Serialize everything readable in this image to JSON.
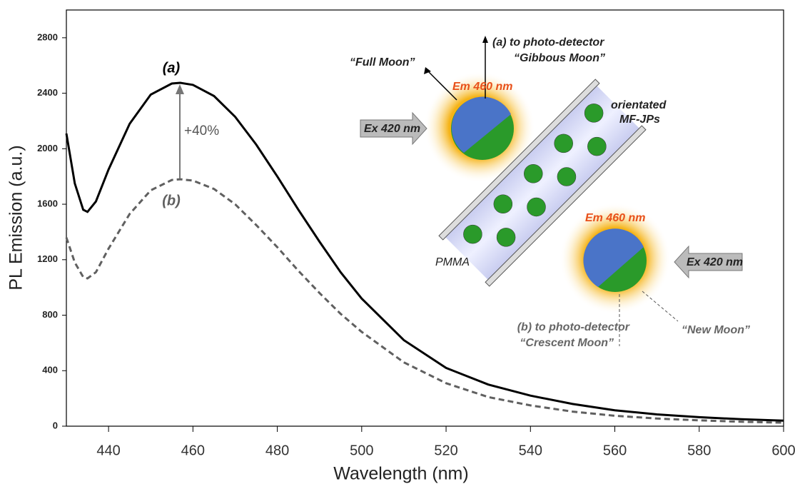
{
  "chart_data": {
    "type": "line",
    "x_label": "Wavelength (nm)",
    "y_label": "PL Emission (a.u.)",
    "x": [
      430,
      432,
      434,
      435,
      437,
      440,
      445,
      450,
      455,
      457,
      460,
      465,
      470,
      475,
      480,
      485,
      490,
      495,
      500,
      510,
      520,
      530,
      540,
      550,
      560,
      570,
      580,
      590,
      600
    ],
    "series": [
      {
        "name": "(a)",
        "color": "#000000",
        "line_style": "solid",
        "values": [
          2110,
          1750,
          1560,
          1545,
          1620,
          1850,
          2180,
          2390,
          2470,
          2475,
          2460,
          2380,
          2230,
          2030,
          1800,
          1560,
          1330,
          1110,
          920,
          620,
          420,
          300,
          220,
          160,
          115,
          85,
          65,
          50,
          40
        ]
      },
      {
        "name": "(b)",
        "color": "#606060",
        "line_style": "dashed",
        "values": [
          1360,
          1180,
          1075,
          1065,
          1110,
          1280,
          1530,
          1700,
          1775,
          1780,
          1770,
          1710,
          1600,
          1450,
          1290,
          1120,
          960,
          810,
          680,
          460,
          310,
          210,
          150,
          105,
          75,
          55,
          42,
          32,
          25
        ]
      }
    ],
    "xlim": [
      430,
      600
    ],
    "xticks": [
      440,
      460,
      480,
      500,
      520,
      540,
      560,
      580,
      600
    ],
    "ylim": [
      0,
      3000
    ],
    "yticks": [
      0,
      400,
      800,
      1200,
      1600,
      2000,
      2400,
      2800
    ],
    "annotations": [
      "+40%"
    ],
    "inset_labels": [
      "“Full Moon”",
      "(a) to photo-detector",
      "“Gibbous Moon”",
      "Em 460 nm",
      "Ex 420 nm",
      "orientated",
      "MF-JPs",
      "PMMA",
      "Em 460 nm",
      "Ex 420 nm",
      "(b) to photo-detector",
      "“Crescent Moon”",
      "“New Moon”"
    ]
  }
}
